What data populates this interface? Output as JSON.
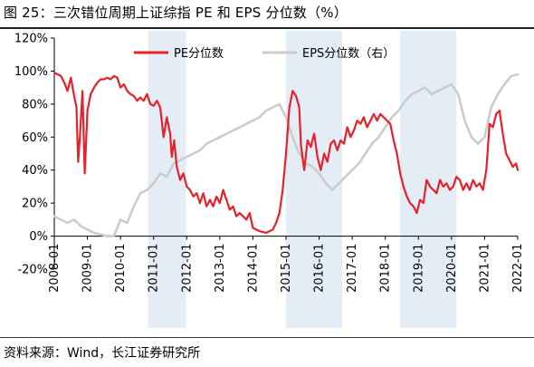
{
  "title": "图 25：三次错位周期上证综指 PE 和 EPS 分位数（%）",
  "source": "资料来源：Wind，长江证券研究所",
  "chart_data": {
    "type": "line",
    "title": "图 25：三次错位周期上证综指 PE 和 EPS 分位数（%）",
    "xlabel": "",
    "ylabel": "",
    "ylim": [
      -20,
      120
    ],
    "xlim": [
      2008.0,
      2022.0
    ],
    "y_ticks": [
      -20,
      0,
      20,
      40,
      60,
      80,
      100,
      120
    ],
    "y_tick_labels": [
      "-20%",
      "0%",
      "20%",
      "40%",
      "60%",
      "80%",
      "100%",
      "120%"
    ],
    "x_ticks": [
      2008,
      2009,
      2010,
      2011,
      2012,
      2013,
      2014,
      2015,
      2016,
      2017,
      2018,
      2019,
      2020,
      2021,
      2022
    ],
    "x_tick_labels": [
      "2008-01",
      "2009-01",
      "2010-01",
      "2011-01",
      "2012-01",
      "2013-01",
      "2014-01",
      "2015-01",
      "2016-01",
      "2017-01",
      "2018-01",
      "2019-01",
      "2020-01",
      "2021-01",
      "2022-01"
    ],
    "legend_position": "top",
    "shaded_periods": [
      [
        2010.83,
        2011.98
      ],
      [
        2015.0,
        2016.7
      ],
      [
        2018.45,
        2020.15
      ]
    ],
    "series": [
      {
        "name": "PE分位数",
        "color": "#e8202a",
        "x": [
          2008.0,
          2008.1,
          2008.2,
          2008.3,
          2008.4,
          2008.5,
          2008.6,
          2008.67,
          2008.72,
          2008.78,
          2008.85,
          2008.92,
          2009.0,
          2009.1,
          2009.2,
          2009.3,
          2009.4,
          2009.5,
          2009.6,
          2009.7,
          2009.8,
          2009.9,
          2010.0,
          2010.1,
          2010.2,
          2010.3,
          2010.4,
          2010.5,
          2010.6,
          2010.7,
          2010.8,
          2010.9,
          2011.0,
          2011.1,
          2011.2,
          2011.3,
          2011.4,
          2011.5,
          2011.55,
          2011.62,
          2011.7,
          2011.8,
          2011.9,
          2012.0,
          2012.1,
          2012.2,
          2012.3,
          2012.4,
          2012.5,
          2012.6,
          2012.7,
          2012.8,
          2012.9,
          2013.0,
          2013.1,
          2013.2,
          2013.3,
          2013.4,
          2013.5,
          2013.6,
          2013.7,
          2013.8,
          2013.9,
          2014.0,
          2014.2,
          2014.4,
          2014.6,
          2014.7,
          2014.8,
          2014.9,
          2015.0,
          2015.1,
          2015.2,
          2015.3,
          2015.4,
          2015.45,
          2015.55,
          2015.65,
          2015.75,
          2015.85,
          2015.95,
          2016.05,
          2016.15,
          2016.25,
          2016.35,
          2016.45,
          2016.55,
          2016.65,
          2016.75,
          2016.85,
          2016.95,
          2017.05,
          2017.15,
          2017.25,
          2017.35,
          2017.45,
          2017.55,
          2017.65,
          2017.75,
          2017.85,
          2017.95,
          2018.05,
          2018.15,
          2018.25,
          2018.35,
          2018.45,
          2018.55,
          2018.65,
          2018.75,
          2018.85,
          2018.95,
          2019.05,
          2019.15,
          2019.25,
          2019.35,
          2019.45,
          2019.55,
          2019.65,
          2019.75,
          2019.85,
          2019.95,
          2020.05,
          2020.15,
          2020.25,
          2020.35,
          2020.45,
          2020.55,
          2020.65,
          2020.75,
          2020.85,
          2020.95,
          2021.05,
          2021.15,
          2021.25,
          2021.35,
          2021.45,
          2021.55,
          2021.65,
          2021.75,
          2021.85,
          2021.95,
          2022.0
        ],
        "values": [
          99,
          98,
          97,
          93,
          88,
          96,
          85,
          78,
          45,
          62,
          88,
          38,
          76,
          86,
          90,
          93,
          95,
          95,
          96,
          95,
          97,
          96,
          90,
          92,
          88,
          86,
          85,
          82,
          84,
          82,
          86,
          80,
          79,
          82,
          78,
          60,
          72,
          62,
          48,
          58,
          42,
          34,
          38,
          30,
          28,
          24,
          26,
          20,
          26,
          18,
          22,
          18,
          24,
          20,
          28,
          22,
          16,
          18,
          12,
          14,
          12,
          10,
          14,
          5,
          3,
          2,
          4,
          8,
          14,
          28,
          50,
          78,
          88,
          85,
          78,
          55,
          40,
          58,
          54,
          62,
          48,
          40,
          50,
          45,
          56,
          58,
          52,
          58,
          56,
          66,
          60,
          64,
          70,
          68,
          72,
          66,
          70,
          74,
          70,
          74,
          72,
          70,
          68,
          58,
          50,
          38,
          30,
          24,
          20,
          18,
          14,
          22,
          20,
          34,
          30,
          28,
          26,
          34,
          30,
          32,
          28,
          30,
          36,
          34,
          28,
          32,
          28,
          34,
          30,
          32,
          28,
          40,
          68,
          66,
          74,
          76,
          62,
          50,
          46,
          42,
          44,
          40
        ]
      },
      {
        "name": "EPS分位数（右）",
        "color": "#cccccc",
        "x": [
          2008.0,
          2008.2,
          2008.4,
          2008.6,
          2008.8,
          2009.0,
          2009.2,
          2009.4,
          2009.6,
          2009.8,
          2010.0,
          2010.2,
          2010.4,
          2010.6,
          2010.8,
          2011.0,
          2011.2,
          2011.4,
          2011.6,
          2011.8,
          2012.0,
          2012.2,
          2012.4,
          2012.6,
          2012.8,
          2013.0,
          2013.2,
          2013.4,
          2013.6,
          2013.8,
          2014.0,
          2014.2,
          2014.4,
          2014.6,
          2014.8,
          2015.0,
          2015.2,
          2015.4,
          2015.6,
          2015.8,
          2016.0,
          2016.2,
          2016.4,
          2016.6,
          2016.8,
          2017.0,
          2017.2,
          2017.4,
          2017.6,
          2017.8,
          2018.0,
          2018.2,
          2018.4,
          2018.6,
          2018.8,
          2019.0,
          2019.2,
          2019.4,
          2019.6,
          2019.8,
          2020.0,
          2020.2,
          2020.4,
          2020.6,
          2020.8,
          2021.0,
          2021.2,
          2021.4,
          2021.6,
          2021.8,
          2022.0
        ],
        "values": [
          12,
          10,
          8,
          10,
          6,
          4,
          2,
          1,
          0,
          0,
          10,
          8,
          18,
          26,
          28,
          32,
          38,
          36,
          44,
          46,
          48,
          50,
          52,
          56,
          58,
          60,
          62,
          64,
          66,
          68,
          70,
          72,
          76,
          78,
          80,
          72,
          60,
          50,
          44,
          42,
          38,
          32,
          28,
          32,
          36,
          40,
          44,
          50,
          56,
          60,
          66,
          72,
          76,
          82,
          86,
          88,
          90,
          86,
          88,
          90,
          92,
          86,
          70,
          60,
          56,
          60,
          78,
          86,
          92,
          97,
          98
        ]
      }
    ]
  }
}
